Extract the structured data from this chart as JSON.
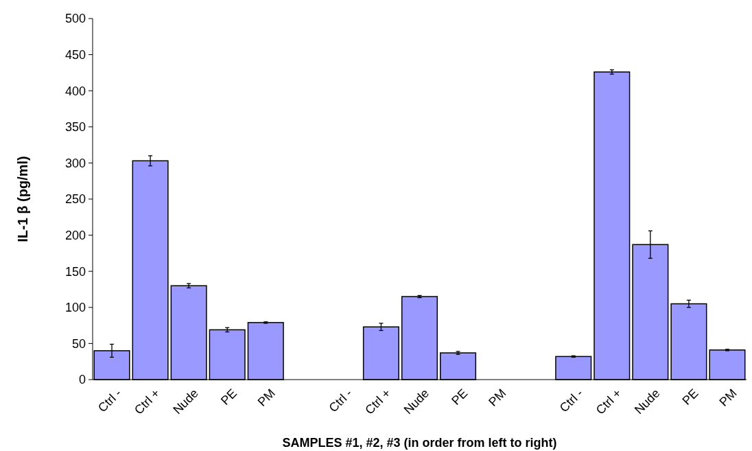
{
  "chart_data": {
    "type": "bar",
    "xlabel": "SAMPLES #1, #2, #3 (in order from left to right)",
    "ylabel": "IL-1 β (pg/ml)",
    "categories": [
      "Ctrl -",
      "Ctrl +",
      "Nude",
      "PE",
      "PM",
      null,
      "Ctrl -",
      "Ctrl +",
      "Nude",
      "PE",
      "PM",
      null,
      "Ctrl -",
      "Ctrl +",
      "Nude",
      "PE",
      "PM"
    ],
    "series": [
      {
        "color": "#9999ff",
        "values": [
          40,
          303,
          130,
          69,
          79,
          null,
          null,
          73,
          115,
          37,
          null,
          null,
          32,
          426,
          187,
          105,
          41
        ],
        "errors": [
          9,
          7,
          3,
          3,
          1,
          null,
          null,
          5,
          1.5,
          2,
          null,
          null,
          1,
          3,
          19,
          5,
          1
        ]
      }
    ],
    "ylim": [
      0,
      500
    ],
    "yticks": [
      0,
      50,
      100,
      150,
      200,
      250,
      300,
      350,
      400,
      450,
      500
    ],
    "grid": false
  }
}
